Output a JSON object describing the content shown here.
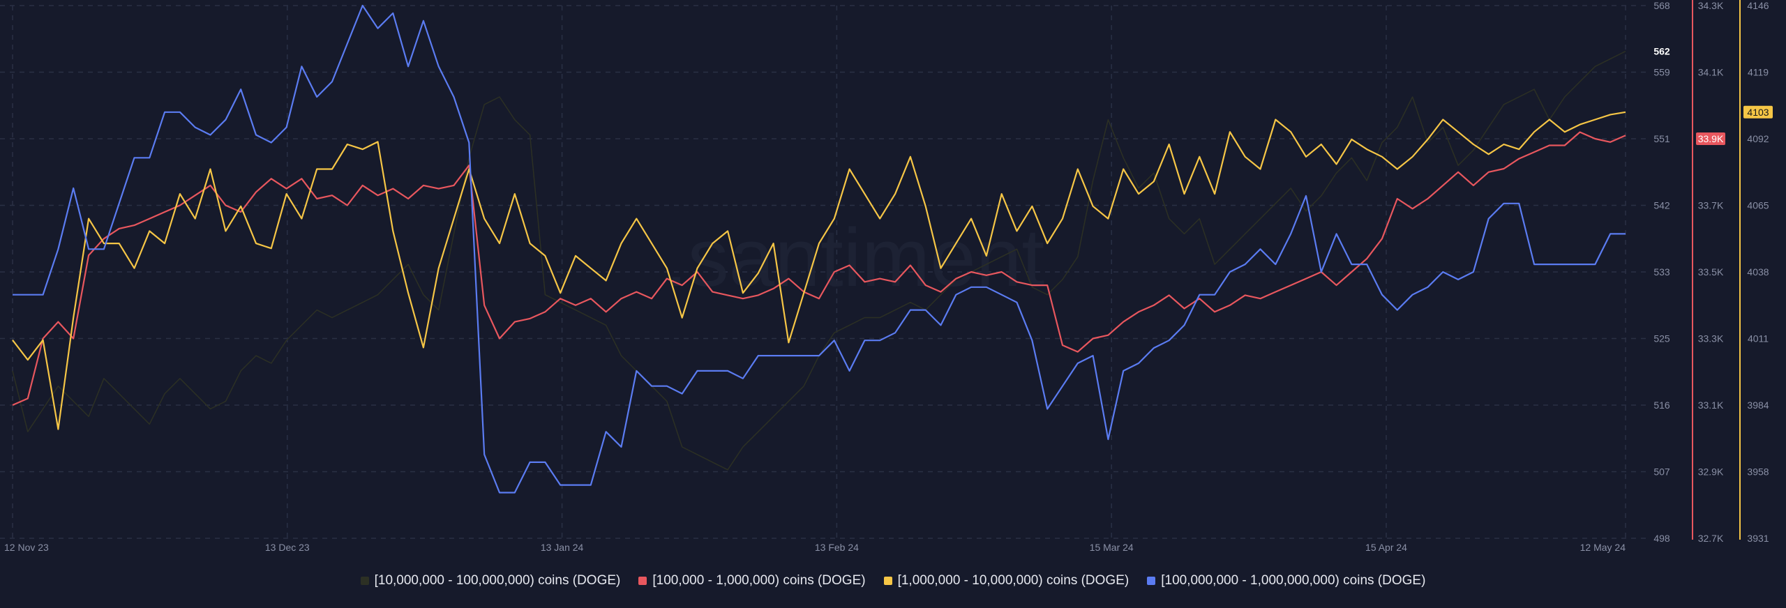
{
  "watermark": ".santiment",
  "chart_data": {
    "type": "line",
    "x_ticks": [
      "12 Nov 23",
      "13 Dec 23",
      "13 Jan 24",
      "13 Feb 24",
      "15 Mar 24",
      "15 Apr 24",
      "12 May 24"
    ],
    "x_range": [
      "2023-11-12",
      "2024-05-12"
    ],
    "grid": true,
    "legend_position": "bottom",
    "axes": [
      {
        "id": "axis-10m-100m",
        "color": "#6b7088",
        "ticks": [
          "568",
          "559",
          "551",
          "542",
          "533",
          "525",
          "516",
          "507",
          "498"
        ],
        "range": [
          498,
          568
        ],
        "current_label": "562",
        "current_value": 562
      },
      {
        "id": "axis-100k-1m",
        "color": "#e8575e",
        "ticks": [
          "34.3K",
          "34.1K",
          "33.9K",
          "33.7K",
          "33.5K",
          "33.3K",
          "33.1K",
          "32.9K",
          "32.7K"
        ],
        "range": [
          32700,
          34300
        ],
        "current_label": "33.9K",
        "current_value": 33900
      },
      {
        "id": "axis-1m-10m",
        "color": "#f6c646",
        "ticks": [
          "4146",
          "4119",
          "4092",
          "4065",
          "4038",
          "4011",
          "3984",
          "3958",
          "3931"
        ],
        "range": [
          3931,
          4146
        ],
        "current_label": "4103",
        "current_value": 4103
      }
    ],
    "series": [
      {
        "name": "[10,000,000 - 100,000,000) coins (DOGE)",
        "color": "#2c3024",
        "axis": 0,
        "x_start": "2023-11-12",
        "x_end": "2024-05-12",
        "values": [
          520,
          512,
          515,
          518,
          516,
          514,
          519,
          517,
          515,
          513,
          517,
          519,
          517,
          515,
          516,
          520,
          522,
          521,
          524,
          526,
          528,
          527,
          528,
          529,
          530,
          532,
          534,
          530,
          528,
          538,
          548,
          555,
          556,
          553,
          551,
          530,
          529,
          528,
          527,
          526,
          522,
          520,
          518,
          516,
          510,
          509,
          508,
          507,
          510,
          512,
          514,
          516,
          518,
          522,
          525,
          526,
          527,
          527,
          528,
          529,
          528,
          530,
          532,
          533,
          534,
          535,
          536,
          531,
          530,
          532,
          535,
          545,
          553,
          548,
          544,
          546,
          540,
          538,
          540,
          534,
          536,
          538,
          540,
          542,
          544,
          541,
          543,
          546,
          548,
          545,
          550,
          552,
          556,
          550,
          552,
          547,
          549,
          552,
          555,
          556,
          557,
          553,
          556,
          558,
          560,
          561,
          562
        ]
      },
      {
        "name": "[100,000  - 1,000,000) coins (DOGE)",
        "color": "#e8575e",
        "axis": 1,
        "x_start": "2023-11-12",
        "x_end": "2024-05-12",
        "values": [
          33100,
          33120,
          33300,
          33350,
          33300,
          33550,
          33600,
          33630,
          33640,
          33660,
          33680,
          33700,
          33730,
          33760,
          33700,
          33680,
          33740,
          33780,
          33750,
          33780,
          33720,
          33730,
          33700,
          33760,
          33730,
          33750,
          33720,
          33760,
          33750,
          33760,
          33820,
          33400,
          33300,
          33350,
          33360,
          33380,
          33420,
          33400,
          33420,
          33380,
          33420,
          33440,
          33420,
          33480,
          33460,
          33500,
          33440,
          33430,
          33420,
          33430,
          33450,
          33480,
          33440,
          33420,
          33500,
          33520,
          33470,
          33480,
          33470,
          33520,
          33460,
          33440,
          33480,
          33500,
          33490,
          33500,
          33470,
          33460,
          33460,
          33280,
          33260,
          33300,
          33310,
          33350,
          33380,
          33400,
          33430,
          33390,
          33420,
          33380,
          33400,
          33430,
          33420,
          33440,
          33460,
          33480,
          33500,
          33460,
          33500,
          33540,
          33600,
          33720,
          33690,
          33720,
          33760,
          33800,
          33760,
          33800,
          33810,
          33840,
          33860,
          33880,
          33880,
          33920,
          33900,
          33890,
          33910
        ]
      },
      {
        "name": "[1,000,000 - 10,000,000) coins (DOGE)",
        "color": "#f6c646",
        "axis": 2,
        "x_start": "2023-11-12",
        "x_end": "2024-05-12",
        "values": [
          4011,
          4003,
          4011,
          3975,
          4020,
          4060,
          4050,
          4050,
          4040,
          4055,
          4050,
          4070,
          4060,
          4080,
          4055,
          4065,
          4050,
          4048,
          4070,
          4060,
          4080,
          4080,
          4090,
          4088,
          4091,
          4055,
          4030,
          4008,
          4040,
          4060,
          4080,
          4060,
          4050,
          4070,
          4050,
          4045,
          4030,
          4045,
          4040,
          4035,
          4050,
          4060,
          4050,
          4040,
          4020,
          4040,
          4050,
          4055,
          4030,
          4038,
          4050,
          4010,
          4030,
          4050,
          4060,
          4080,
          4070,
          4060,
          4070,
          4085,
          4065,
          4040,
          4050,
          4060,
          4045,
          4070,
          4055,
          4065,
          4050,
          4060,
          4080,
          4065,
          4060,
          4080,
          4070,
          4075,
          4090,
          4070,
          4085,
          4070,
          4095,
          4085,
          4080,
          4100,
          4095,
          4085,
          4090,
          4082,
          4092,
          4088,
          4085,
          4080,
          4085,
          4092,
          4100,
          4095,
          4090,
          4086,
          4090,
          4088,
          4095,
          4100,
          4095,
          4098,
          4100,
          4102,
          4103
        ]
      },
      {
        "name": "[100,000,000 - 1,000,000,000) coins (DOGE)",
        "color": "#5b7cf2",
        "axis": 0,
        "x_start": "2023-11-12",
        "x_end": "2024-05-12",
        "values": [
          530,
          530,
          530,
          536,
          544,
          536,
          536,
          542,
          548,
          548,
          554,
          554,
          552,
          551,
          553,
          557,
          551,
          550,
          552,
          560,
          556,
          558,
          563,
          568,
          565,
          567,
          560,
          566,
          560,
          556,
          550,
          509,
          504,
          504,
          508,
          508,
          505,
          505,
          505,
          512,
          510,
          520,
          518,
          518,
          517,
          520,
          520,
          520,
          519,
          522,
          522,
          522,
          522,
          522,
          524,
          520,
          524,
          524,
          525,
          528,
          528,
          526,
          530,
          531,
          531,
          530,
          529,
          524,
          515,
          518,
          521,
          522,
          511,
          520,
          521,
          523,
          524,
          526,
          530,
          530,
          533,
          534,
          536,
          534,
          538,
          543,
          533,
          538,
          534,
          534,
          530,
          528,
          530,
          531,
          533,
          532,
          533,
          540,
          542,
          542,
          534,
          534,
          534,
          534,
          534,
          538,
          538
        ]
      }
    ]
  },
  "legend": [
    {
      "label": "[10,000,000 - 100,000,000) coins (DOGE)",
      "color": "#2c3024"
    },
    {
      "label": "[100,000  - 1,000,000) coins (DOGE)",
      "color": "#e8575e"
    },
    {
      "label": "[1,000,000 - 10,000,000) coins (DOGE)",
      "color": "#f6c646"
    },
    {
      "label": "[100,000,000 - 1,000,000,000) coins (DOGE)",
      "color": "#5b7cf2"
    }
  ]
}
